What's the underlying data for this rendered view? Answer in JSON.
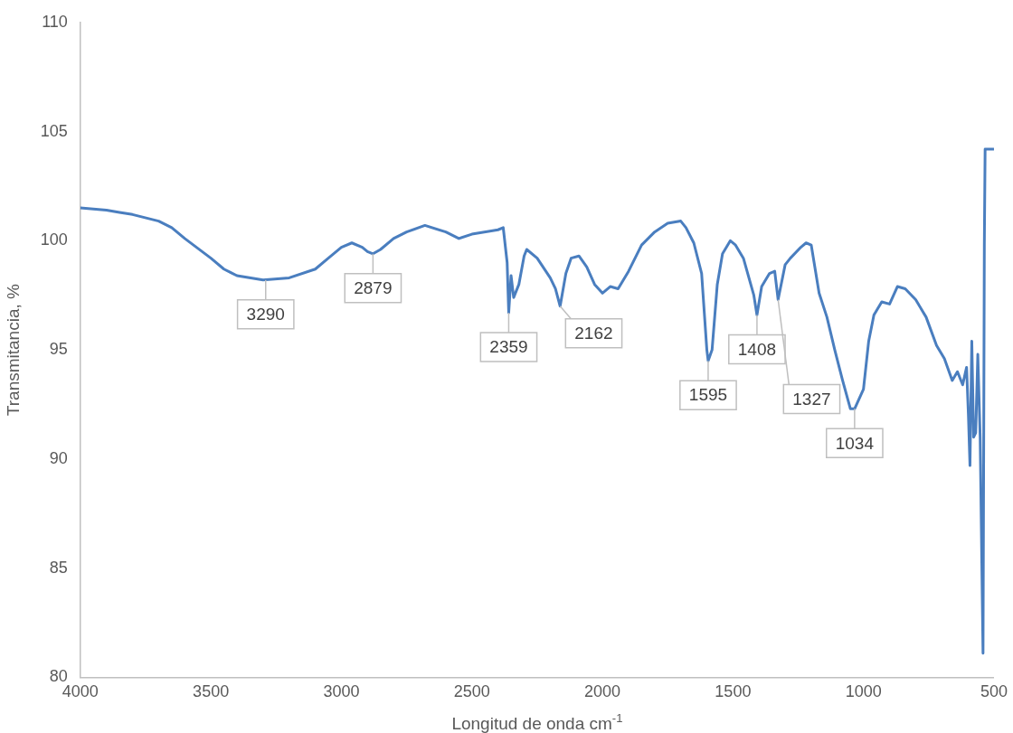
{
  "chart_data": {
    "type": "line",
    "xlabel": "Longitud de onda cm$^{-1}$",
    "ylabel": "Transmitancia, %",
    "xlim": [
      4000,
      500
    ],
    "xticks": [
      4000,
      3500,
      3000,
      2500,
      2000,
      1500,
      1000,
      500
    ],
    "ylim": [
      80,
      110
    ],
    "yticks": [
      80,
      85,
      90,
      95,
      100,
      105,
      110
    ],
    "grid": false,
    "legend": false,
    "marker": "none",
    "line_style": "solid",
    "series": [
      {
        "color": "#4a7ebf",
        "x": [
          4000,
          3900,
          3850,
          3800,
          3700,
          3650,
          3600,
          3500,
          3450,
          3400,
          3300,
          3200,
          3100,
          3050,
          3000,
          2960,
          2920,
          2900,
          2879,
          2850,
          2800,
          2750,
          2680,
          2600,
          2550,
          2500,
          2400,
          2380,
          2365,
          2359,
          2350,
          2340,
          2320,
          2300,
          2290,
          2250,
          2200,
          2180,
          2162,
          2140,
          2120,
          2090,
          2060,
          2030,
          2000,
          1970,
          1940,
          1900,
          1850,
          1800,
          1750,
          1700,
          1680,
          1650,
          1620,
          1600,
          1595,
          1580,
          1560,
          1540,
          1510,
          1490,
          1460,
          1420,
          1408,
          1390,
          1360,
          1340,
          1327,
          1300,
          1280,
          1240,
          1220,
          1200,
          1170,
          1140,
          1110,
          1080,
          1050,
          1034,
          1000,
          980,
          960,
          930,
          900,
          870,
          840,
          800,
          760,
          720,
          690,
          660,
          640,
          620,
          605,
          598,
          592,
          585,
          578,
          570,
          562,
          553,
          542,
          537,
          534,
          500
        ],
        "values": [
          101.5,
          101.4,
          101.3,
          101.2,
          100.9,
          100.6,
          100.1,
          99.2,
          98.7,
          98.4,
          98.2,
          98.3,
          98.7,
          99.2,
          99.7,
          99.9,
          99.7,
          99.5,
          99.4,
          99.6,
          100.1,
          100.4,
          100.7,
          100.4,
          100.1,
          100.3,
          100.5,
          100.6,
          99.0,
          96.7,
          98.4,
          97.4,
          98.0,
          99.3,
          99.6,
          99.2,
          98.3,
          97.8,
          97.0,
          98.5,
          99.2,
          99.3,
          98.8,
          98.0,
          97.6,
          97.9,
          97.8,
          98.6,
          99.8,
          100.4,
          100.8,
          100.9,
          100.6,
          99.9,
          98.5,
          95.0,
          94.5,
          95.0,
          98.0,
          99.4,
          100.0,
          99.8,
          99.2,
          97.5,
          96.6,
          97.9,
          98.5,
          98.6,
          97.3,
          98.9,
          99.2,
          99.7,
          99.9,
          99.8,
          97.6,
          96.5,
          95.0,
          93.6,
          92.3,
          92.3,
          93.2,
          95.4,
          96.6,
          97.2,
          97.1,
          97.9,
          97.8,
          97.3,
          96.5,
          95.2,
          94.6,
          93.6,
          94.0,
          93.4,
          94.2,
          92.0,
          89.7,
          95.4,
          91.0,
          91.2,
          94.8,
          91.0,
          81.1,
          99.8,
          104.2,
          104.2
        ]
      }
    ],
    "annotations": [
      {
        "text": "3290",
        "x": 3290,
        "y": 98.2
      },
      {
        "text": "2879",
        "x": 2879,
        "y": 99.4
      },
      {
        "text": "2359",
        "x": 2359,
        "y": 96.7
      },
      {
        "text": "2162",
        "x": 2162,
        "y": 97.0
      },
      {
        "text": "1595",
        "x": 1595,
        "y": 94.5
      },
      {
        "text": "1408",
        "x": 1408,
        "y": 96.6
      },
      {
        "text": "1327",
        "x": 1327,
        "y": 97.3
      },
      {
        "text": "1034",
        "x": 1034,
        "y": 92.3
      }
    ]
  }
}
